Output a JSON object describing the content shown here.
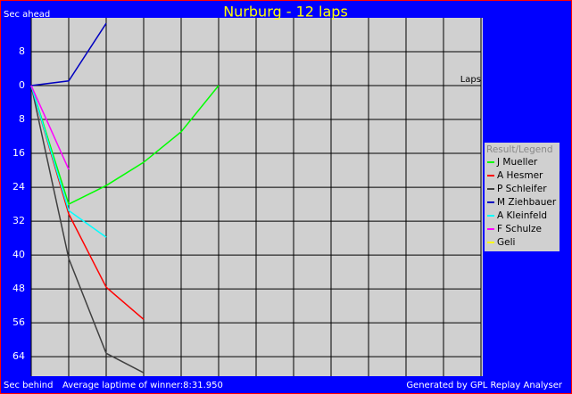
{
  "chart_data": {
    "type": "line",
    "title": "Nurburg - 12 laps",
    "y_label_top": "Sec ahead",
    "y_label_bottom": "Sec behind",
    "x_label": "Laps",
    "footer_left": "Average laptime of winner:8:31.950",
    "footer_right": "Generated by GPL Replay Analyser",
    "legend_title": "Result/Legend",
    "x": [
      0,
      1,
      2,
      3,
      4,
      5
    ],
    "xlim": [
      0,
      12
    ],
    "ylim": [
      -68.6,
      16
    ],
    "yticks": [
      8,
      0,
      {
        "value": -8,
        "label": "8"
      },
      {
        "value": -16,
        "label": "16"
      },
      {
        "value": -24,
        "label": "24"
      },
      {
        "value": -32,
        "label": "32"
      },
      {
        "value": -40,
        "label": "40"
      },
      {
        "value": -48,
        "label": "48"
      },
      {
        "value": -56,
        "label": "56"
      },
      {
        "value": -64,
        "label": "64"
      }
    ],
    "grid": true,
    "series": [
      {
        "name": "J Mueller",
        "color": "#00ff00",
        "values": [
          0,
          -28,
          -23.6,
          -18.1,
          -10.9,
          0
        ]
      },
      {
        "name": "A Hesmer",
        "color": "#ff0000",
        "values": [
          0,
          -30.3,
          -47.6,
          -55.2,
          null,
          null
        ]
      },
      {
        "name": "P Schleifer",
        "color": "#404040",
        "values": [
          0,
          -40.8,
          -63.2,
          -67.8,
          null,
          null
        ]
      },
      {
        "name": "M Ziehbauer",
        "color": "#0000c0",
        "values": [
          0,
          1.1,
          14.7,
          null,
          null,
          null
        ]
      },
      {
        "name": "A Kleinfeld",
        "color": "#00ffff",
        "values": [
          0,
          -29.5,
          -35.8,
          null,
          null,
          null
        ]
      },
      {
        "name": "F Schulze",
        "color": "#ff00ff",
        "values": [
          0,
          -19.8,
          null,
          null,
          null,
          null
        ]
      },
      {
        "name": "Geli",
        "color": "#ffff00",
        "values": [
          0,
          null,
          null,
          null,
          null,
          null
        ]
      }
    ]
  }
}
